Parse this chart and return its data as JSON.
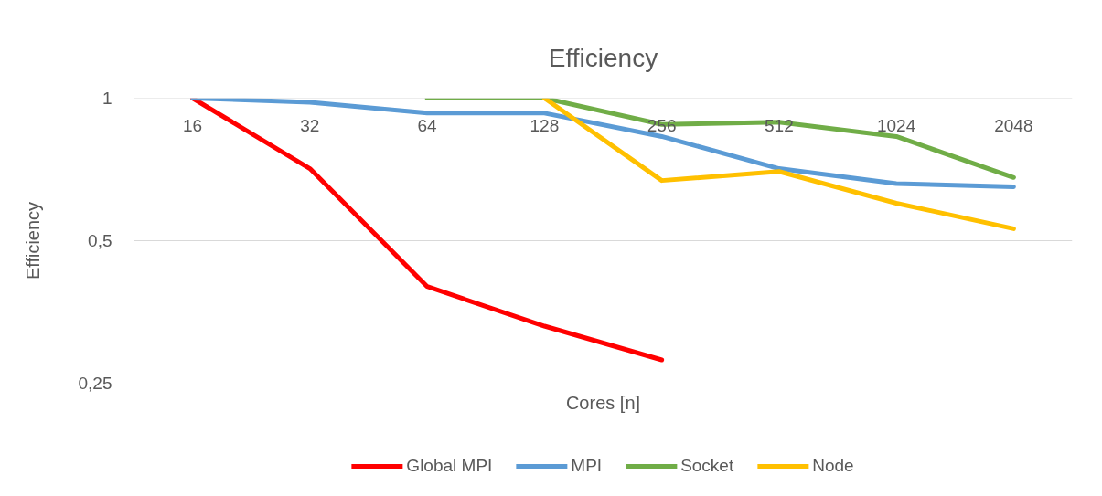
{
  "chart_data": {
    "type": "line",
    "title": "Efficiency",
    "xlabel": "Cores [n]",
    "ylabel": "Efficiency",
    "categories": [
      "16",
      "32",
      "64",
      "128",
      "256",
      "512",
      "1024",
      "2048"
    ],
    "log": true,
    "ylim": [
      0.25,
      1
    ],
    "yticks": [
      {
        "value": 0.25,
        "label": "0,25"
      },
      {
        "value": 0.5,
        "label": "0,5"
      },
      1
    ],
    "grid": "y",
    "legend": "bottom",
    "line_style": "solid",
    "series": [
      {
        "name": "Global MPI",
        "color": "#ff0000",
        "values": [
          1,
          0.71,
          0.4,
          0.33,
          0.28,
          null,
          null,
          null
        ]
      },
      {
        "name": "MPI",
        "color": "#5b9bd5",
        "values": [
          1,
          0.98,
          0.93,
          0.93,
          0.83,
          0.71,
          0.66,
          0.65
        ]
      },
      {
        "name": "Socket",
        "color": "#70ad47",
        "values": [
          null,
          null,
          1,
          1,
          0.88,
          0.89,
          0.83,
          0.68
        ]
      },
      {
        "name": "Node",
        "color": "#ffc000",
        "values": [
          null,
          null,
          null,
          1,
          0.67,
          0.7,
          0.6,
          0.53
        ]
      }
    ]
  }
}
